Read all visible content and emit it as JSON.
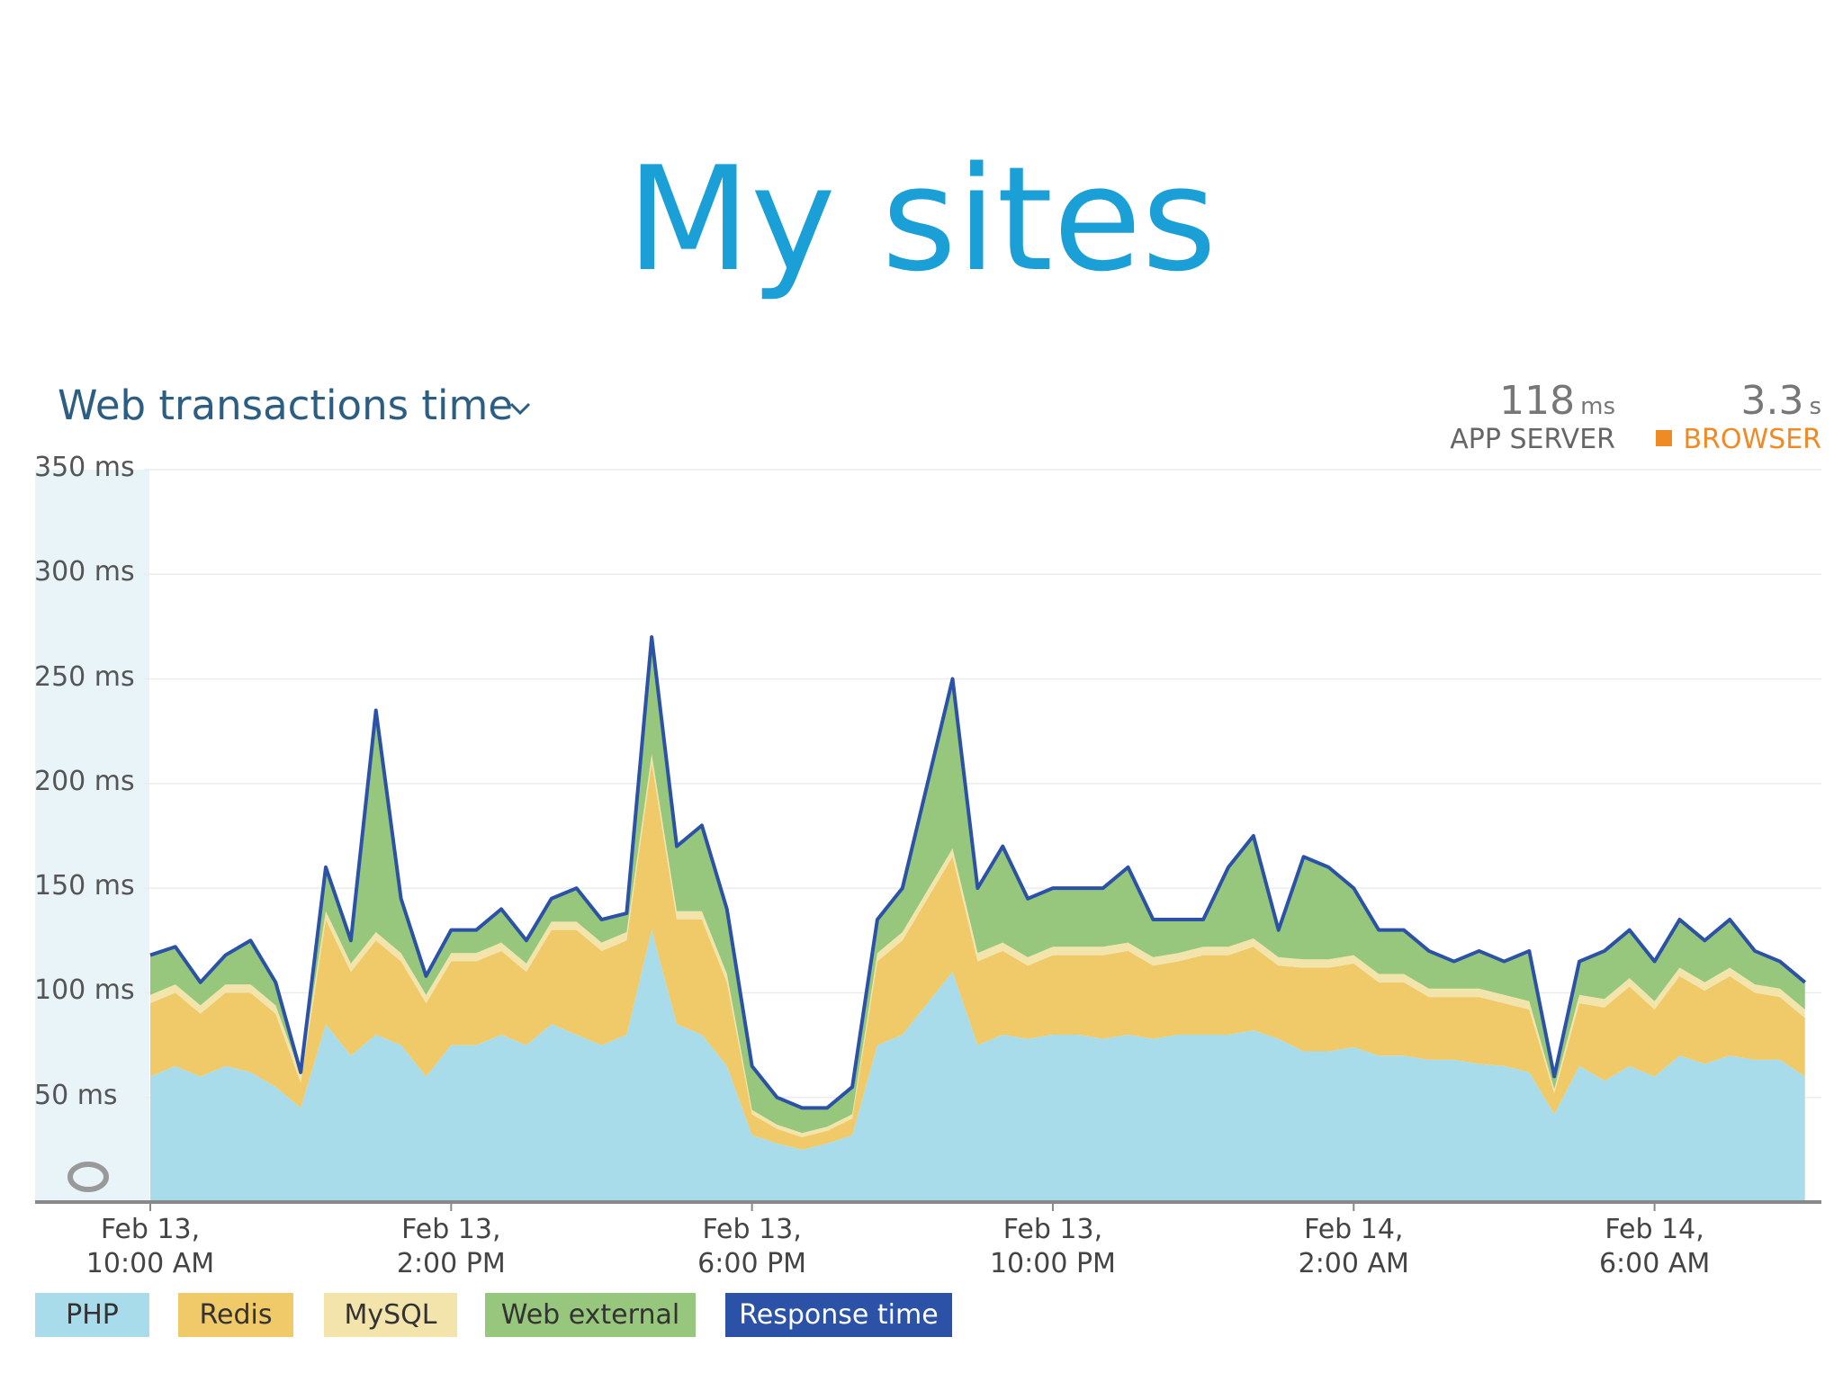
{
  "slide_title": "My sites",
  "chart_data": {
    "type": "area",
    "title": "Web transactions time",
    "summary": [
      {
        "value": 118,
        "unit": "ms",
        "label": "APP SERVER"
      },
      {
        "value": 3.3,
        "unit": "s",
        "label": "BROWSER",
        "color": "#f08a24"
      }
    ],
    "categories": [
      "Feb 13,\n10:00 AM",
      null,
      null,
      null,
      null,
      null,
      null,
      null,
      null,
      null,
      null,
      null,
      "Feb 13,\n2:00 PM",
      null,
      null,
      null,
      null,
      null,
      null,
      null,
      null,
      null,
      null,
      null,
      "Feb 13,\n6:00 PM",
      null,
      null,
      null,
      null,
      null,
      null,
      null,
      null,
      null,
      null,
      null,
      "Feb 13,\n10:00 PM",
      null,
      null,
      null,
      null,
      null,
      null,
      null,
      null,
      null,
      null,
      null,
      "Feb 14,\n2:00 AM",
      null,
      null,
      null,
      null,
      null,
      null,
      null,
      null,
      null,
      null,
      null,
      "Feb 14,\n6:00 AM",
      null,
      null,
      null,
      null,
      null,
      null
    ],
    "ylim": [
      0,
      350
    ],
    "yticks": [
      {
        "value": 50,
        "label": "50 ms"
      },
      {
        "value": 100,
        "label": "100 ms"
      },
      {
        "value": 150,
        "label": "150 ms"
      },
      {
        "value": 200,
        "label": "200 ms"
      },
      {
        "value": 250,
        "label": "250 ms"
      },
      {
        "value": 300,
        "label": "300 ms"
      },
      {
        "value": 350,
        "label": "350 ms"
      }
    ],
    "grid": true,
    "series": [
      {
        "name": "PHP",
        "color": "#a9dcea",
        "type": "area",
        "values": [
          60,
          65,
          60,
          65,
          62,
          55,
          45,
          85,
          70,
          80,
          75,
          60,
          75,
          75,
          80,
          75,
          85,
          80,
          75,
          80,
          130,
          85,
          80,
          65,
          32,
          28,
          25,
          28,
          32,
          75,
          80,
          95,
          110,
          75,
          80,
          78,
          80,
          80,
          78,
          80,
          78,
          80,
          80,
          80,
          82,
          78,
          72,
          72,
          74,
          70,
          70,
          68,
          68,
          66,
          65,
          62,
          42,
          65,
          58,
          65,
          60,
          70,
          66,
          70,
          68,
          68,
          60
        ]
      },
      {
        "name": "Redis",
        "color": "#f0ca68",
        "type": "area",
        "values": [
          35,
          35,
          30,
          35,
          38,
          35,
          12,
          50,
          40,
          45,
          40,
          35,
          40,
          40,
          40,
          35,
          45,
          50,
          45,
          45,
          80,
          50,
          55,
          40,
          10,
          7,
          6,
          6,
          8,
          40,
          45,
          50,
          55,
          40,
          40,
          35,
          38,
          38,
          40,
          40,
          35,
          35,
          38,
          38,
          40,
          35,
          40,
          40,
          40,
          35,
          35,
          30,
          30,
          32,
          30,
          30,
          10,
          30,
          35,
          38,
          32,
          38,
          35,
          38,
          32,
          30,
          28
        ]
      },
      {
        "name": "MySQL",
        "color": "#f3e4ac",
        "type": "area",
        "values": [
          4,
          4,
          4,
          4,
          4,
          4,
          4,
          4,
          4,
          4,
          4,
          4,
          4,
          4,
          4,
          4,
          4,
          4,
          4,
          4,
          4,
          4,
          4,
          4,
          2,
          2,
          2,
          2,
          2,
          4,
          4,
          4,
          4,
          4,
          4,
          4,
          4,
          4,
          4,
          4,
          4,
          4,
          4,
          4,
          4,
          4,
          4,
          4,
          4,
          4,
          4,
          4,
          4,
          4,
          4,
          4,
          2,
          4,
          4,
          4,
          4,
          4,
          4,
          4,
          4,
          4,
          4
        ]
      },
      {
        "name": "Web external",
        "color": "#96c77c",
        "type": "area",
        "values": [
          19,
          18,
          11,
          14,
          21,
          11,
          1,
          21,
          11,
          106,
          26,
          9,
          11,
          11,
          16,
          11,
          11,
          16,
          11,
          9,
          56,
          31,
          41,
          31,
          21,
          13,
          12,
          9,
          13,
          16,
          21,
          51,
          81,
          31,
          46,
          28,
          28,
          28,
          28,
          36,
          18,
          16,
          13,
          38,
          49,
          13,
          49,
          44,
          32,
          21,
          21,
          18,
          13,
          18,
          16,
          24,
          6,
          16,
          23,
          23,
          19,
          23,
          20,
          23,
          16,
          13,
          13
        ]
      },
      {
        "name": "Response time",
        "color": "#2b52a6",
        "type": "line",
        "values": [
          118,
          122,
          105,
          118,
          125,
          105,
          62,
          160,
          125,
          235,
          145,
          108,
          130,
          130,
          140,
          125,
          145,
          150,
          135,
          138,
          270,
          170,
          180,
          140,
          65,
          50,
          45,
          45,
          55,
          135,
          150,
          200,
          250,
          150,
          170,
          145,
          150,
          150,
          150,
          160,
          135,
          135,
          135,
          160,
          175,
          130,
          165,
          160,
          150,
          130,
          130,
          120,
          115,
          120,
          115,
          120,
          60,
          115,
          120,
          130,
          115,
          135,
          125,
          135,
          120,
          115,
          105
        ]
      }
    ]
  }
}
